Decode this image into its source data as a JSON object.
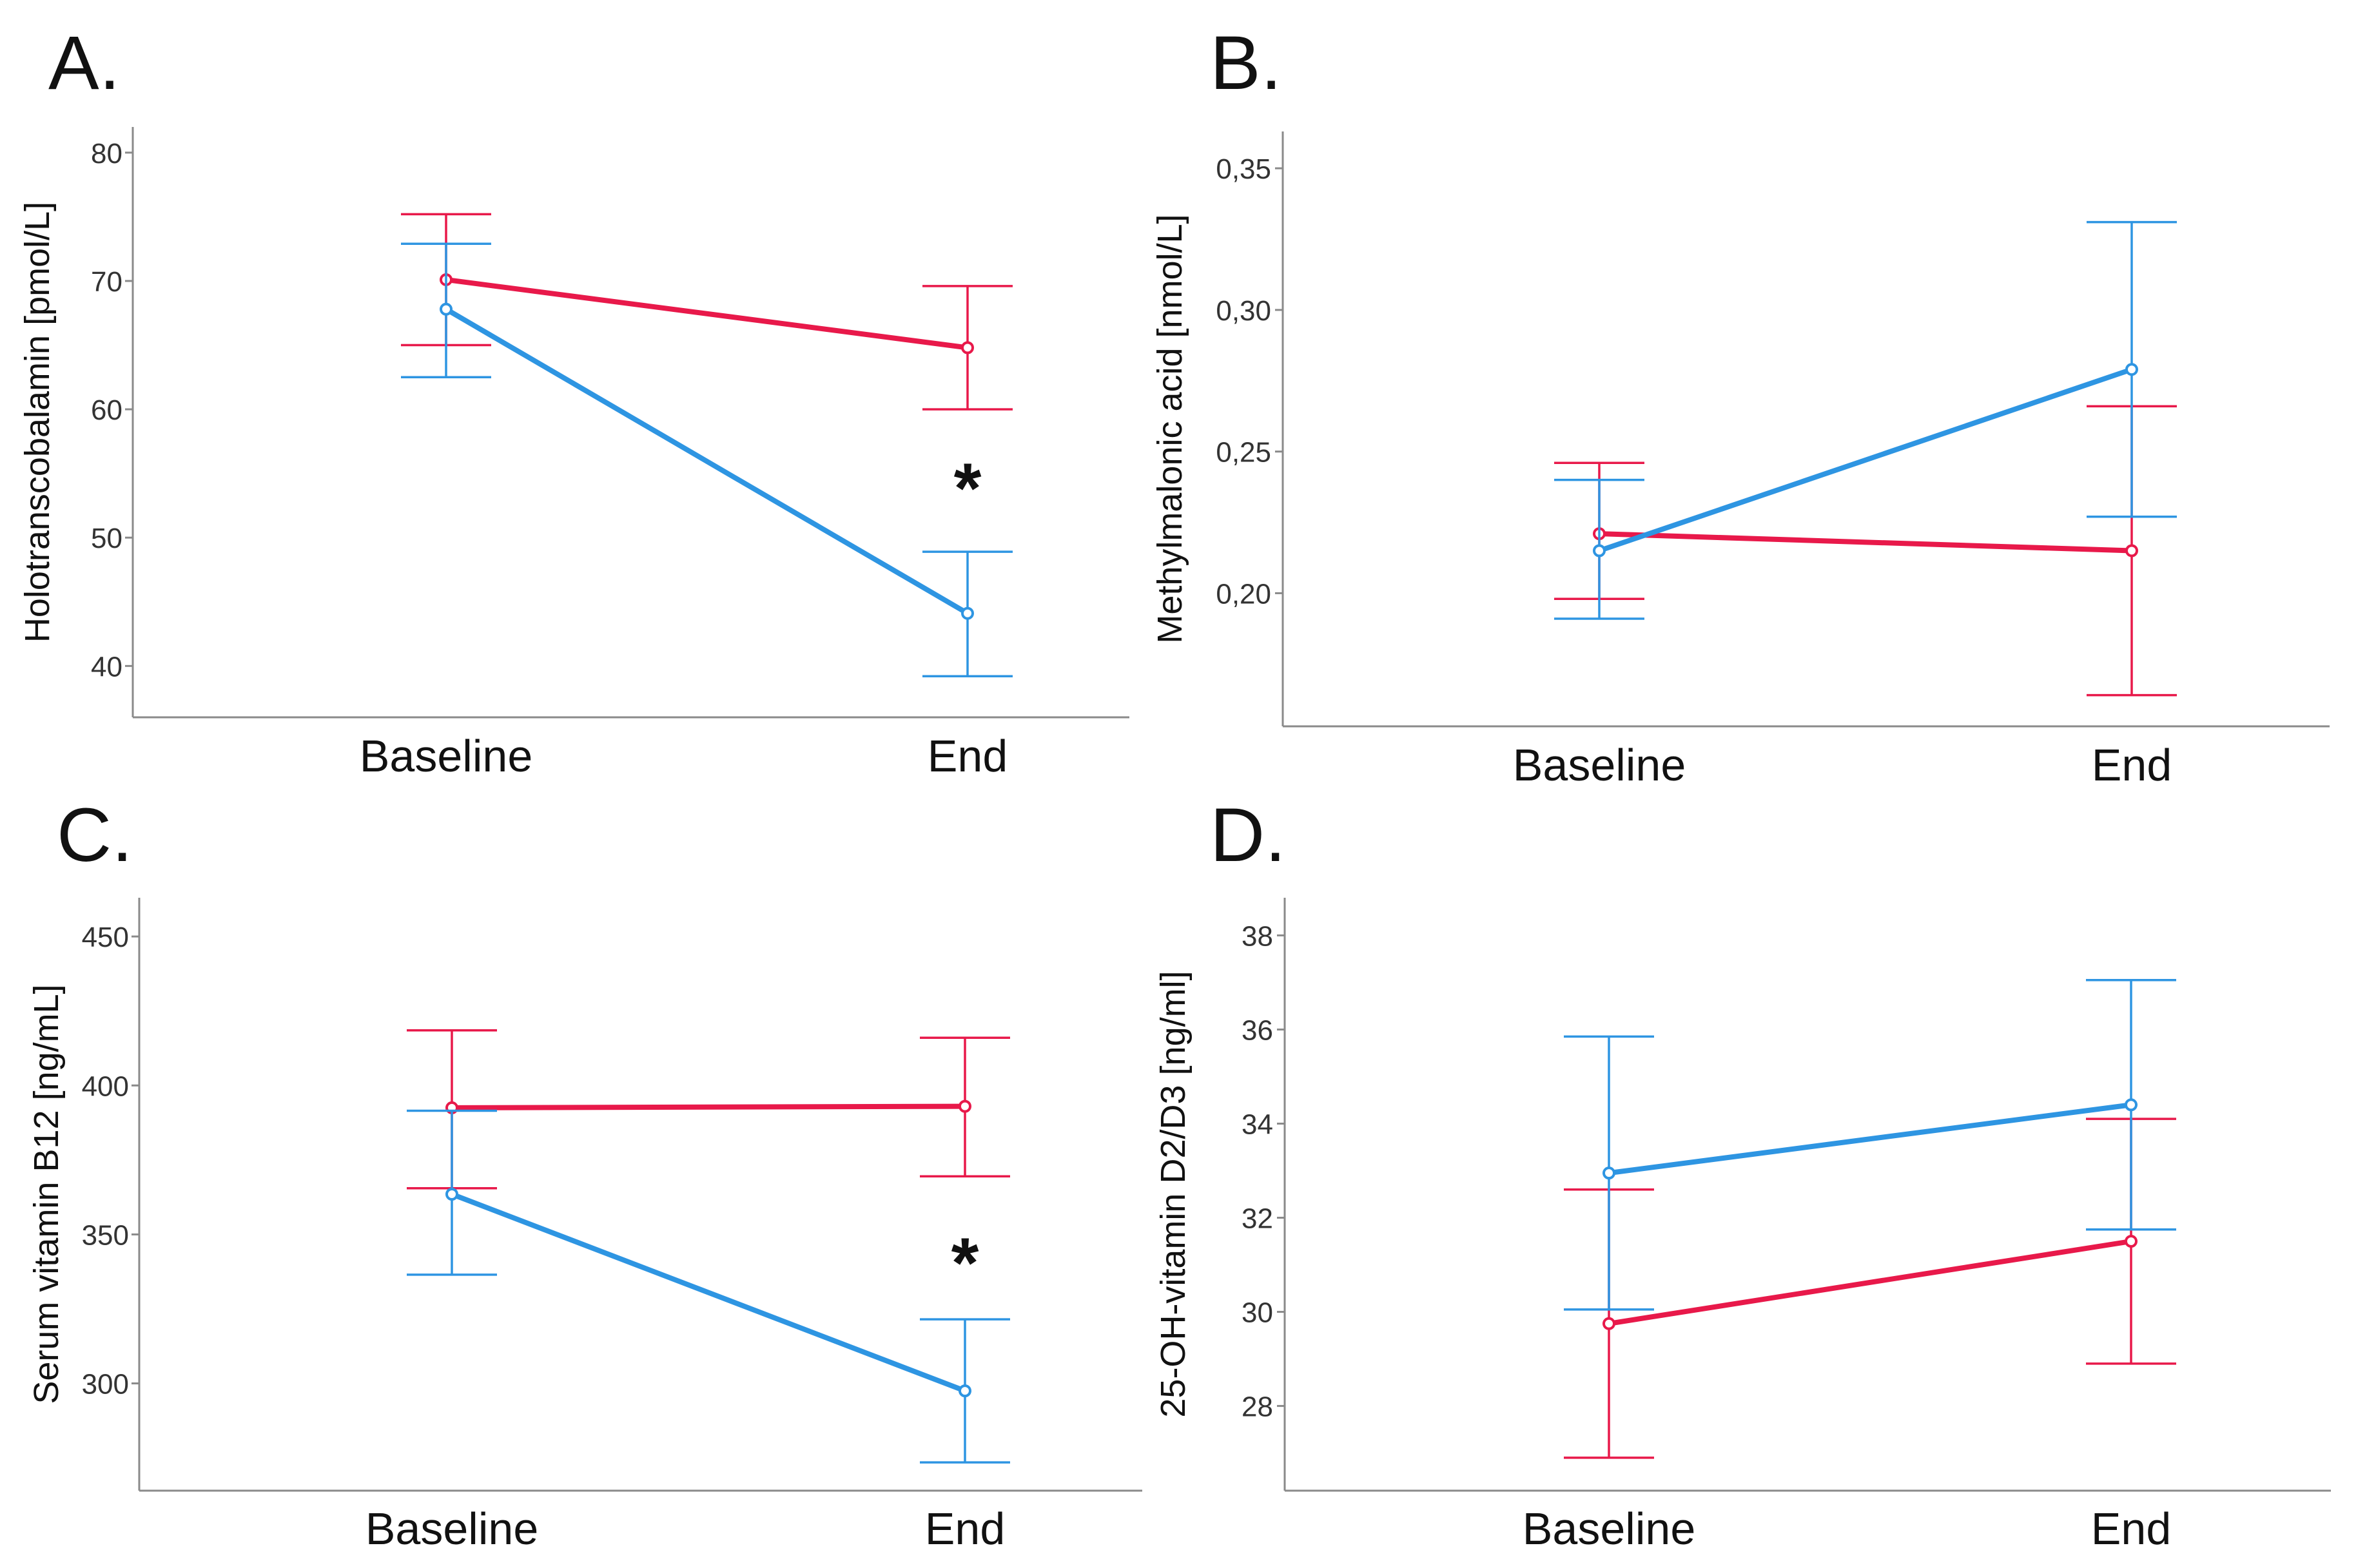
{
  "colors": {
    "red_series": "#E8194A",
    "blue_series": "#2E95E2",
    "axis": "#8a8a8a"
  },
  "chart_data": [
    {
      "type": "line",
      "panel_label": "A.",
      "ylabel": "Holotranscobalamin [pmol/L]",
      "categories": [
        "Baseline",
        "End"
      ],
      "ylim": [
        36,
        82
      ],
      "yticks": [
        40,
        50,
        60,
        70,
        80
      ],
      "series": [
        {
          "color": "#E8194A",
          "values": [
            70.1,
            64.8
          ],
          "ci_low": [
            65.0,
            60.0
          ],
          "ci_high": [
            75.2,
            69.6
          ]
        },
        {
          "color": "#2E95E2",
          "values": [
            67.8,
            44.1
          ],
          "ci_low": [
            62.5,
            39.2
          ],
          "ci_high": [
            72.9,
            48.9
          ]
        }
      ],
      "annotations": [
        {
          "text": "*",
          "category": "End",
          "y": 54.2
        }
      ]
    },
    {
      "type": "line",
      "panel_label": "B.",
      "ylabel": "Methylmalonic acid [nmol/L]",
      "categories": [
        "Baseline",
        "End"
      ],
      "ylim": [
        0.153,
        0.363
      ],
      "yticks": [
        "0,20",
        "0,25",
        "0,30",
        "0,35"
      ],
      "series": [
        {
          "color": "#E8194A",
          "values": [
            0.221,
            0.215
          ],
          "ci_low": [
            0.198,
            0.164
          ],
          "ci_high": [
            0.246,
            0.266
          ]
        },
        {
          "color": "#2E95E2",
          "values": [
            0.215,
            0.279
          ],
          "ci_low": [
            0.191,
            0.227
          ],
          "ci_high": [
            0.24,
            0.331
          ]
        }
      ],
      "annotations": []
    },
    {
      "type": "line",
      "panel_label": "C.",
      "ylabel": "Serum vitamin B12 [ng/mL]",
      "categories": [
        "Baseline",
        "End"
      ],
      "ylim": [
        264,
        463
      ],
      "yticks": [
        300,
        350,
        400,
        450
      ],
      "series": [
        {
          "color": "#E8194A",
          "values": [
            392.5,
            393.0
          ],
          "ci_low": [
            365.5,
            369.5
          ],
          "ci_high": [
            418.5,
            416.0
          ]
        },
        {
          "color": "#2E95E2",
          "values": [
            363.5,
            297.5
          ],
          "ci_low": [
            336.5,
            273.5
          ],
          "ci_high": [
            391.5,
            321.5
          ]
        }
      ],
      "annotations": [
        {
          "text": "*",
          "category": "End",
          "y": 342
        }
      ]
    },
    {
      "type": "line",
      "panel_label": "D.",
      "ylabel": "25-OH-vitamin D2/D3 [ng/ml]",
      "categories": [
        "Baseline",
        "End"
      ],
      "ylim": [
        26.2,
        38.8
      ],
      "yticks": [
        28,
        30,
        32,
        34,
        36,
        38
      ],
      "series": [
        {
          "color": "#E8194A",
          "values": [
            29.75,
            31.5
          ],
          "ci_low": [
            26.9,
            28.9
          ],
          "ci_high": [
            32.6,
            34.1
          ]
        },
        {
          "color": "#2E95E2",
          "values": [
            32.95,
            34.4
          ],
          "ci_low": [
            30.05,
            31.75
          ],
          "ci_high": [
            35.85,
            37.05
          ]
        }
      ],
      "annotations": []
    }
  ]
}
